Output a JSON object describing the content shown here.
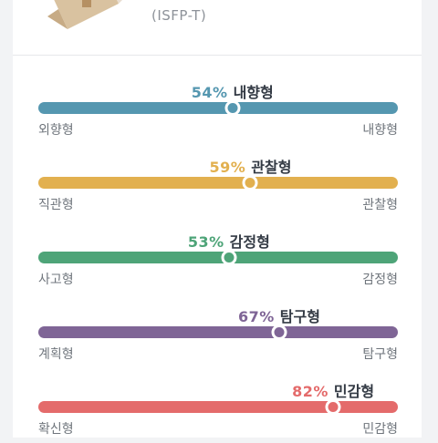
{
  "profile": {
    "type_code": "(ISFP-T)"
  },
  "traits": [
    {
      "percent": 54,
      "percent_label": "54%",
      "name": "내향형",
      "left_label": "외향형",
      "right_label": "내향형",
      "color": "#5597b0"
    },
    {
      "percent": 59,
      "percent_label": "59%",
      "name": "관찰형",
      "left_label": "직관형",
      "right_label": "관찰형",
      "color": "#e2b04f"
    },
    {
      "percent": 53,
      "percent_label": "53%",
      "name": "감정형",
      "left_label": "사고형",
      "right_label": "감정형",
      "color": "#4ea478"
    },
    {
      "percent": 67,
      "percent_label": "67%",
      "name": "탐구형",
      "left_label": "계획형",
      "right_label": "탐구형",
      "color": "#7f6596"
    },
    {
      "percent": 82,
      "percent_label": "82%",
      "name": "민감형",
      "left_label": "확신형",
      "right_label": "민감형",
      "color": "#e46b6b"
    }
  ]
}
